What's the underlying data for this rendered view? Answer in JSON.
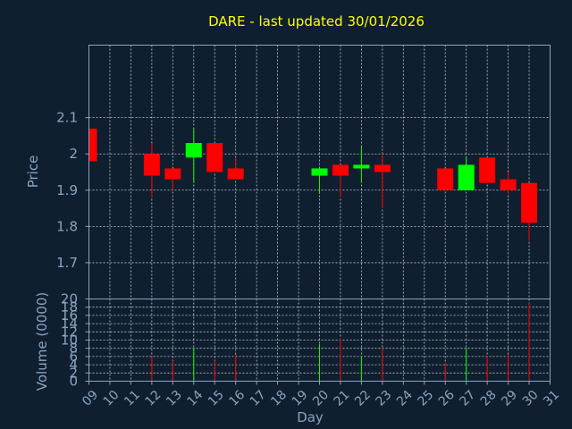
{
  "chart_data": {
    "type": "candlestick",
    "title": "DARE - last updated 30/01/2026",
    "xlabel": "Day",
    "price_panel": {
      "ylabel": "Price",
      "ylim": [
        1.6,
        2.3
      ],
      "yticks": [
        1.7,
        1.8,
        1.9,
        2,
        2.1
      ],
      "ytick_labels": [
        "1.7",
        "1.8",
        "1.9",
        "2",
        "2.1"
      ]
    },
    "volume_panel": {
      "ylabel": "Volume (0000)",
      "ylim": [
        0,
        20
      ],
      "yticks": [
        0,
        2,
        4,
        6,
        8,
        10,
        12,
        14,
        16,
        18,
        20
      ],
      "ytick_labels": [
        "0",
        "2",
        "4",
        "6",
        "8",
        "10",
        "12",
        "14",
        "16",
        "18",
        "20"
      ]
    },
    "xlim": [
      9,
      31
    ],
    "x_ticks": [
      9,
      10,
      11,
      12,
      13,
      14,
      15,
      16,
      17,
      18,
      19,
      20,
      21,
      22,
      23,
      24,
      25,
      26,
      27,
      28,
      29,
      30,
      31
    ],
    "x_tick_labels": [
      "09",
      "10",
      "11",
      "12",
      "13",
      "14",
      "15",
      "16",
      "17",
      "18",
      "19",
      "20",
      "21",
      "22",
      "23",
      "24",
      "25",
      "26",
      "27",
      "28",
      "29",
      "30",
      "31"
    ],
    "colors": {
      "up": "#00ff00",
      "down": "#ff0000",
      "grid": "#ffffff",
      "axis": "#8aa4bf",
      "title": "#ffff00",
      "background": "#0f1f30"
    },
    "grid": true,
    "candles": [
      {
        "day": 9,
        "open": 2.07,
        "high": 2.07,
        "low": 1.98,
        "close": 1.98,
        "volume": 0
      },
      {
        "day": 12,
        "open": 2.0,
        "high": 2.03,
        "low": 1.88,
        "close": 1.94,
        "volume": 6
      },
      {
        "day": 13,
        "open": 1.96,
        "high": 1.96,
        "low": 1.9,
        "close": 1.93,
        "volume": 5
      },
      {
        "day": 14,
        "open": 1.99,
        "high": 2.07,
        "low": 1.92,
        "close": 2.03,
        "volume": 8
      },
      {
        "day": 15,
        "open": 2.03,
        "high": 2.03,
        "low": 1.95,
        "close": 1.95,
        "volume": 5
      },
      {
        "day": 16,
        "open": 1.96,
        "high": 1.99,
        "low": 1.93,
        "close": 1.93,
        "volume": 6.5
      },
      {
        "day": 20,
        "open": 1.94,
        "high": 1.96,
        "low": 1.89,
        "close": 1.96,
        "volume": 9
      },
      {
        "day": 21,
        "open": 1.97,
        "high": 1.97,
        "low": 1.88,
        "close": 1.94,
        "volume": 10.5
      },
      {
        "day": 22,
        "open": 1.96,
        "high": 2.02,
        "low": 1.92,
        "close": 1.97,
        "volume": 6
      },
      {
        "day": 23,
        "open": 1.97,
        "high": 2.0,
        "low": 1.85,
        "close": 1.95,
        "volume": 8
      },
      {
        "day": 26,
        "open": 1.96,
        "high": 1.96,
        "low": 1.9,
        "close": 1.9,
        "volume": 4.5
      },
      {
        "day": 27,
        "open": 1.9,
        "high": 1.99,
        "low": 1.9,
        "close": 1.97,
        "volume": 8
      },
      {
        "day": 28,
        "open": 1.99,
        "high": 1.99,
        "low": 1.92,
        "close": 1.92,
        "volume": 6
      },
      {
        "day": 29,
        "open": 1.93,
        "high": 1.95,
        "low": 1.89,
        "close": 1.9,
        "volume": 6.5
      },
      {
        "day": 30,
        "open": 1.92,
        "high": 1.92,
        "low": 1.76,
        "close": 1.81,
        "volume": 19
      }
    ]
  }
}
